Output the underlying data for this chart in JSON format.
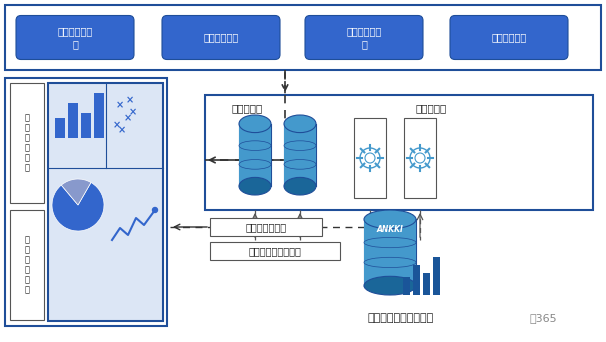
{
  "bg_color": "#ffffff",
  "dark_blue": "#1f4e99",
  "btn_blue": "#3366cc",
  "mid_blue": "#4472c4",
  "cyl_blue": "#4499cc",
  "cyl_dark": "#1a6699",
  "top_buttons": [
    "数据库资产管\n理",
    "数据资产管理",
    "资产分布和权\n限",
    "资产风险评估"
  ],
  "left_view1": "数\n据\n分\n布\n视\n图",
  "left_view2": "安\n全\n态\n势\n视\n图",
  "mid_label1": "核心数据库",
  "mid_label2": "其它数据源",
  "arrow_label1": "安全评估、分析",
  "arrow_label2": "数据发现、分类分级",
  "ankki_text": "ANKKI",
  "bottom_text1": "数据安全分类分级系统",
  "bottom_text2": "案365"
}
